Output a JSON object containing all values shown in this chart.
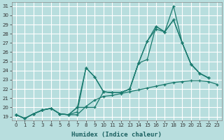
{
  "xlabel": "Humidex (Indice chaleur)",
  "background_color": "#b8dede",
  "grid_color": "#ffffff",
  "line_color": "#1a7a6e",
  "xmin": -0.5,
  "xmax": 23.5,
  "ymin": 18.6,
  "ymax": 31.4,
  "yticks": [
    19,
    20,
    21,
    22,
    23,
    24,
    25,
    26,
    27,
    28,
    29,
    30,
    31
  ],
  "xticks": [
    0,
    1,
    2,
    3,
    4,
    5,
    6,
    7,
    8,
    9,
    10,
    11,
    12,
    13,
    14,
    15,
    16,
    17,
    18,
    19,
    20,
    21,
    22,
    23
  ],
  "line1_x": [
    0,
    1,
    2,
    3,
    4,
    5,
    6,
    7,
    8,
    9,
    10,
    11,
    12,
    13,
    14,
    15,
    16,
    17,
    18,
    19,
    20,
    21,
    22,
    23
  ],
  "line1_y": [
    19.2,
    18.8,
    19.3,
    19.7,
    19.9,
    19.3,
    19.2,
    19.2,
    20.1,
    20.8,
    21.2,
    21.3,
    21.5,
    21.7,
    21.9,
    22.1,
    22.3,
    22.5,
    22.7,
    22.8,
    22.9,
    22.9,
    22.8,
    22.5
  ],
  "line2_x": [
    0,
    1,
    2,
    3,
    4,
    5,
    6,
    7,
    8,
    9,
    10,
    11,
    12,
    13,
    14,
    15,
    16,
    17,
    18,
    19,
    20,
    21,
    22,
    23
  ],
  "line2_y": [
    19.2,
    18.8,
    19.3,
    19.7,
    19.9,
    19.3,
    19.2,
    19.5,
    24.3,
    23.3,
    21.7,
    21.6,
    21.6,
    22.0,
    24.8,
    27.2,
    28.5,
    28.2,
    31.0,
    27.0,
    24.7,
    23.7,
    23.2,
    null
  ],
  "line3_x": [
    0,
    1,
    2,
    3,
    4,
    5,
    6,
    7,
    8,
    9,
    10,
    11,
    12,
    13,
    14,
    15,
    16,
    17,
    18,
    19,
    20,
    21,
    22,
    23
  ],
  "line3_y": [
    19.2,
    18.8,
    19.3,
    19.7,
    19.9,
    19.3,
    19.2,
    20.0,
    24.3,
    23.3,
    21.7,
    21.6,
    21.6,
    22.0,
    24.8,
    27.2,
    28.8,
    28.2,
    29.5,
    27.0,
    24.7,
    23.7,
    23.2,
    null
  ],
  "line4_x": [
    0,
    1,
    2,
    3,
    4,
    5,
    6,
    7,
    8,
    9,
    10,
    11,
    12,
    13,
    14,
    15,
    16,
    17,
    18,
    19,
    20,
    21,
    22,
    23
  ],
  "line4_y": [
    19.2,
    18.8,
    19.3,
    19.7,
    19.9,
    19.3,
    19.2,
    20.0,
    20.0,
    20.0,
    21.7,
    21.6,
    21.6,
    22.0,
    24.8,
    25.2,
    28.8,
    28.2,
    29.5,
    27.0,
    24.7,
    23.7,
    23.2,
    null
  ]
}
